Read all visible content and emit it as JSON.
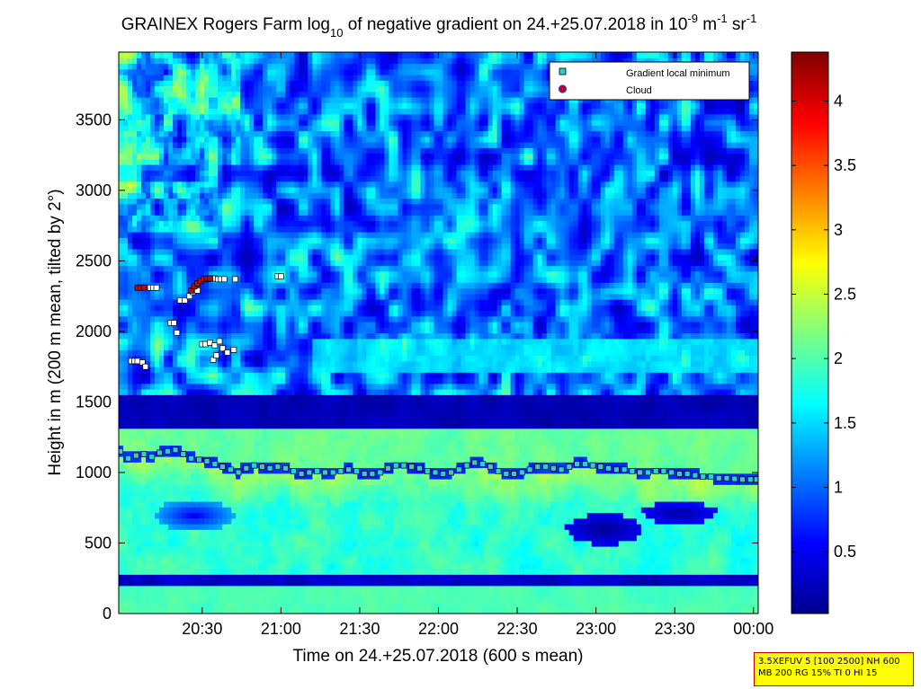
{
  "chart_data": {
    "type": "heatmap",
    "title": {
      "prefix": "GRAINEX Rogers Farm log",
      "prefix_sub": "10",
      "middle": " of negative gradient on 24.+25.07.2018 in 10",
      "exp1": "-9",
      "unit1": " m",
      "exp2": "-1",
      "unit2": " sr",
      "exp3": "-1"
    },
    "xlabel": "Time on 24.+25.07.2018 (600 s mean)",
    "ylabel": "Height in m (200 m mean, tilted by 2°)",
    "x_ticks": [
      "20:30",
      "21:00",
      "21:30",
      "22:00",
      "22:30",
      "23:00",
      "23:30",
      "00:00"
    ],
    "x_tick_hours": [
      20.5,
      21.0,
      21.5,
      22.0,
      22.5,
      23.0,
      23.5,
      24.0
    ],
    "xlim_hours": [
      19.97,
      24.03
    ],
    "y_ticks": [
      "0",
      "500",
      "1000",
      "1500",
      "2000",
      "2500",
      "3000",
      "3500"
    ],
    "y_tick_values": [
      0,
      500,
      1000,
      1500,
      2000,
      2500,
      3000,
      3500
    ],
    "ylim": [
      0,
      3980
    ],
    "colorbar": {
      "colormap": "jet",
      "range": [
        0.02,
        4.38
      ],
      "ticks": [
        "0.5",
        "1",
        "1.5",
        "2",
        "2.5",
        "3",
        "3.5",
        "4"
      ],
      "tick_values": [
        0.5,
        1,
        1.5,
        2,
        2.5,
        3,
        3.5,
        4
      ]
    },
    "legend": {
      "placement": "top-right",
      "entries": [
        {
          "label": "Gradient local minimum",
          "marker": "square",
          "color": "#33cccc"
        },
        {
          "label": "Cloud",
          "marker": "circle",
          "color": "#cc0000"
        }
      ]
    },
    "series": [
      {
        "name": "Gradient local minimum",
        "x_hours": [
          19.98,
          20.03,
          20.08,
          20.13,
          20.18,
          20.23,
          20.28,
          20.33,
          20.38,
          20.43,
          20.48,
          20.53,
          20.58,
          20.63,
          20.68,
          20.73,
          20.78,
          20.83,
          20.88,
          20.93,
          20.98,
          21.03,
          21.08,
          21.13,
          21.18,
          21.23,
          21.28,
          21.33,
          21.38,
          21.43,
          21.48,
          21.53,
          21.58,
          21.63,
          21.68,
          21.73,
          21.78,
          21.83,
          21.88,
          21.93,
          21.98,
          22.03,
          22.08,
          22.13,
          22.18,
          22.23,
          22.28,
          22.33,
          22.38,
          22.43,
          22.48,
          22.53,
          22.58,
          22.63,
          22.68,
          22.73,
          22.78,
          22.83,
          22.88,
          22.93,
          22.98,
          23.03,
          23.08,
          23.13,
          23.18,
          23.23,
          23.28,
          23.33,
          23.38,
          23.43,
          23.48,
          23.53,
          23.58,
          23.63,
          23.68,
          23.73,
          23.78,
          23.83,
          23.88,
          23.93,
          23.98,
          24.02
        ],
        "heights_m": [
          1150,
          1100,
          1120,
          1130,
          1110,
          1140,
          1150,
          1160,
          1130,
          1100,
          1090,
          1080,
          1060,
          1040,
          1020,
          1000,
          1030,
          1050,
          1040,
          1030,
          1040,
          1030,
          1010,
          990,
          1000,
          1010,
          1000,
          1000,
          1010,
          1020,
          1010,
          990,
          990,
          1000,
          1030,
          1050,
          1050,
          1040,
          1030,
          1010,
          1000,
          990,
          1000,
          1020,
          1050,
          1070,
          1060,
          1040,
          1010,
          990,
          990,
          1000,
          1020,
          1040,
          1040,
          1030,
          1020,
          1040,
          1060,
          1060,
          1050,
          1040,
          1030,
          1020,
          1020,
          1010,
          1000,
          1000,
          1010,
          1010,
          1000,
          990,
          990,
          980,
          970,
          970,
          960,
          960,
          955,
          950,
          950,
          950
        ]
      },
      {
        "name": "Cloud",
        "x_hours": [
          20.09,
          20.11,
          20.13,
          20.43,
          20.45,
          20.47,
          20.49,
          20.51,
          20.53,
          20.55
        ],
        "heights_m": [
          2310,
          2310,
          2310,
          2290,
          2320,
          2340,
          2360,
          2370,
          2375,
          2375
        ]
      }
    ],
    "other_points": {
      "x_hours": [
        20.05,
        20.07,
        20.09,
        20.12,
        20.14,
        20.17,
        20.19,
        20.21,
        20.3,
        20.32,
        20.34,
        20.36,
        20.39,
        20.42,
        20.44,
        20.47,
        20.5,
        20.52,
        20.55,
        20.58,
        20.61,
        20.63,
        20.66,
        20.7,
        20.52,
        20.54,
        20.56,
        20.58,
        20.6,
        20.62,
        20.57,
        20.59,
        20.64,
        20.71,
        20.98,
        21.0
      ],
      "heights_m": [
        1790,
        1790,
        1790,
        1780,
        1750,
        2310,
        2310,
        2310,
        2060,
        2060,
        1990,
        2220,
        2220,
        2250,
        2280,
        2290,
        1910,
        1910,
        1920,
        1900,
        1930,
        1880,
        1850,
        1870,
        2370,
        2370,
        2375,
        2375,
        2370,
        2370,
        1800,
        1830,
        2370,
        2370,
        2390,
        2390
      ]
    }
  },
  "info_box": {
    "line1": "3.5XEFUV 5 [100 2500] NH 600",
    "line2": "MB 200 RG 15% TI 0 HI 15"
  }
}
